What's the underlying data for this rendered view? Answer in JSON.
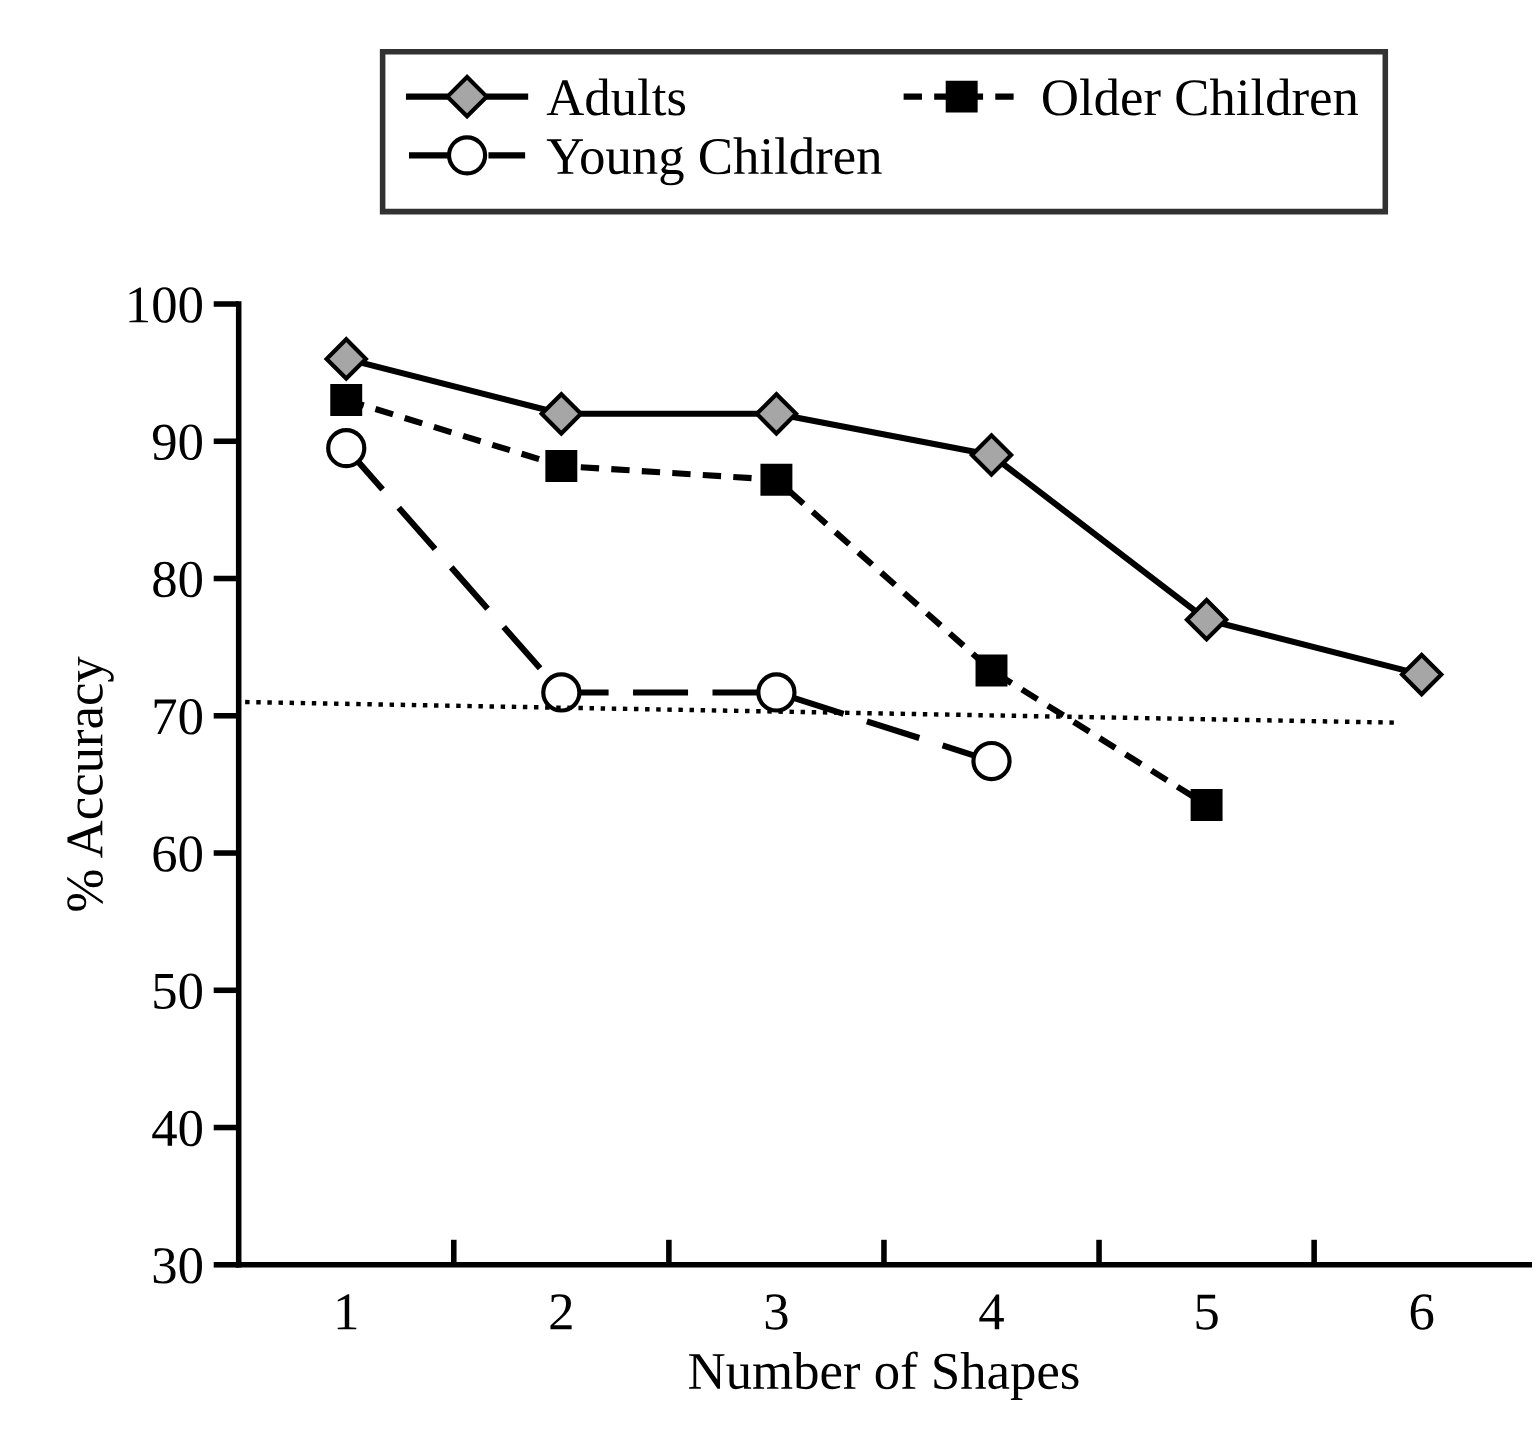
{
  "chart_data": {
    "type": "line",
    "xlabel": "Number of Shapes",
    "ylabel": "% Accuracy",
    "xlim": [
      0.5,
      6.5
    ],
    "ylim": [
      30,
      100
    ],
    "xticks": [
      {
        "value": 1,
        "label": "1"
      },
      {
        "value": 1.5,
        "label": null
      },
      {
        "value": 2,
        "label": "2"
      },
      {
        "value": 2.5,
        "label": null
      },
      {
        "value": 3,
        "label": "3"
      },
      {
        "value": 3.5,
        "label": null
      },
      {
        "value": 4,
        "label": "4"
      },
      {
        "value": 4.5,
        "label": null
      },
      {
        "value": 5,
        "label": "5"
      },
      {
        "value": 5.5,
        "label": null
      },
      {
        "value": 6,
        "label": "6"
      }
    ],
    "yticks": [
      30,
      40,
      50,
      60,
      70,
      80,
      90,
      100
    ],
    "grid": false,
    "legend": "top",
    "series": [
      {
        "name": "Adults",
        "color": "#000000",
        "marker": "diamond",
        "line_style": "solid",
        "x": [
          1,
          2,
          3,
          4,
          5,
          6
        ],
        "values": [
          96,
          92,
          92,
          89,
          77,
          73
        ]
      },
      {
        "name": "Young Children",
        "color": "#000000",
        "marker": "circle",
        "line_style": "dashed",
        "x": [
          1,
          2,
          3,
          4
        ],
        "values": [
          89.5,
          71.7,
          71.7,
          66.7
        ]
      },
      {
        "name": "Older Children",
        "color": "#000000",
        "marker": "square",
        "line_style": "dashed",
        "x": [
          1,
          2,
          3,
          4,
          5
        ],
        "values": [
          93,
          88.2,
          87.2,
          73.3,
          63.5
        ]
      },
      {
        "type": "line",
        "color": "#000000",
        "marker": "none",
        "line_style": "dotted",
        "x": [
          0.53,
          5.88
        ],
        "values": [
          71,
          69.5
        ]
      }
    ]
  }
}
